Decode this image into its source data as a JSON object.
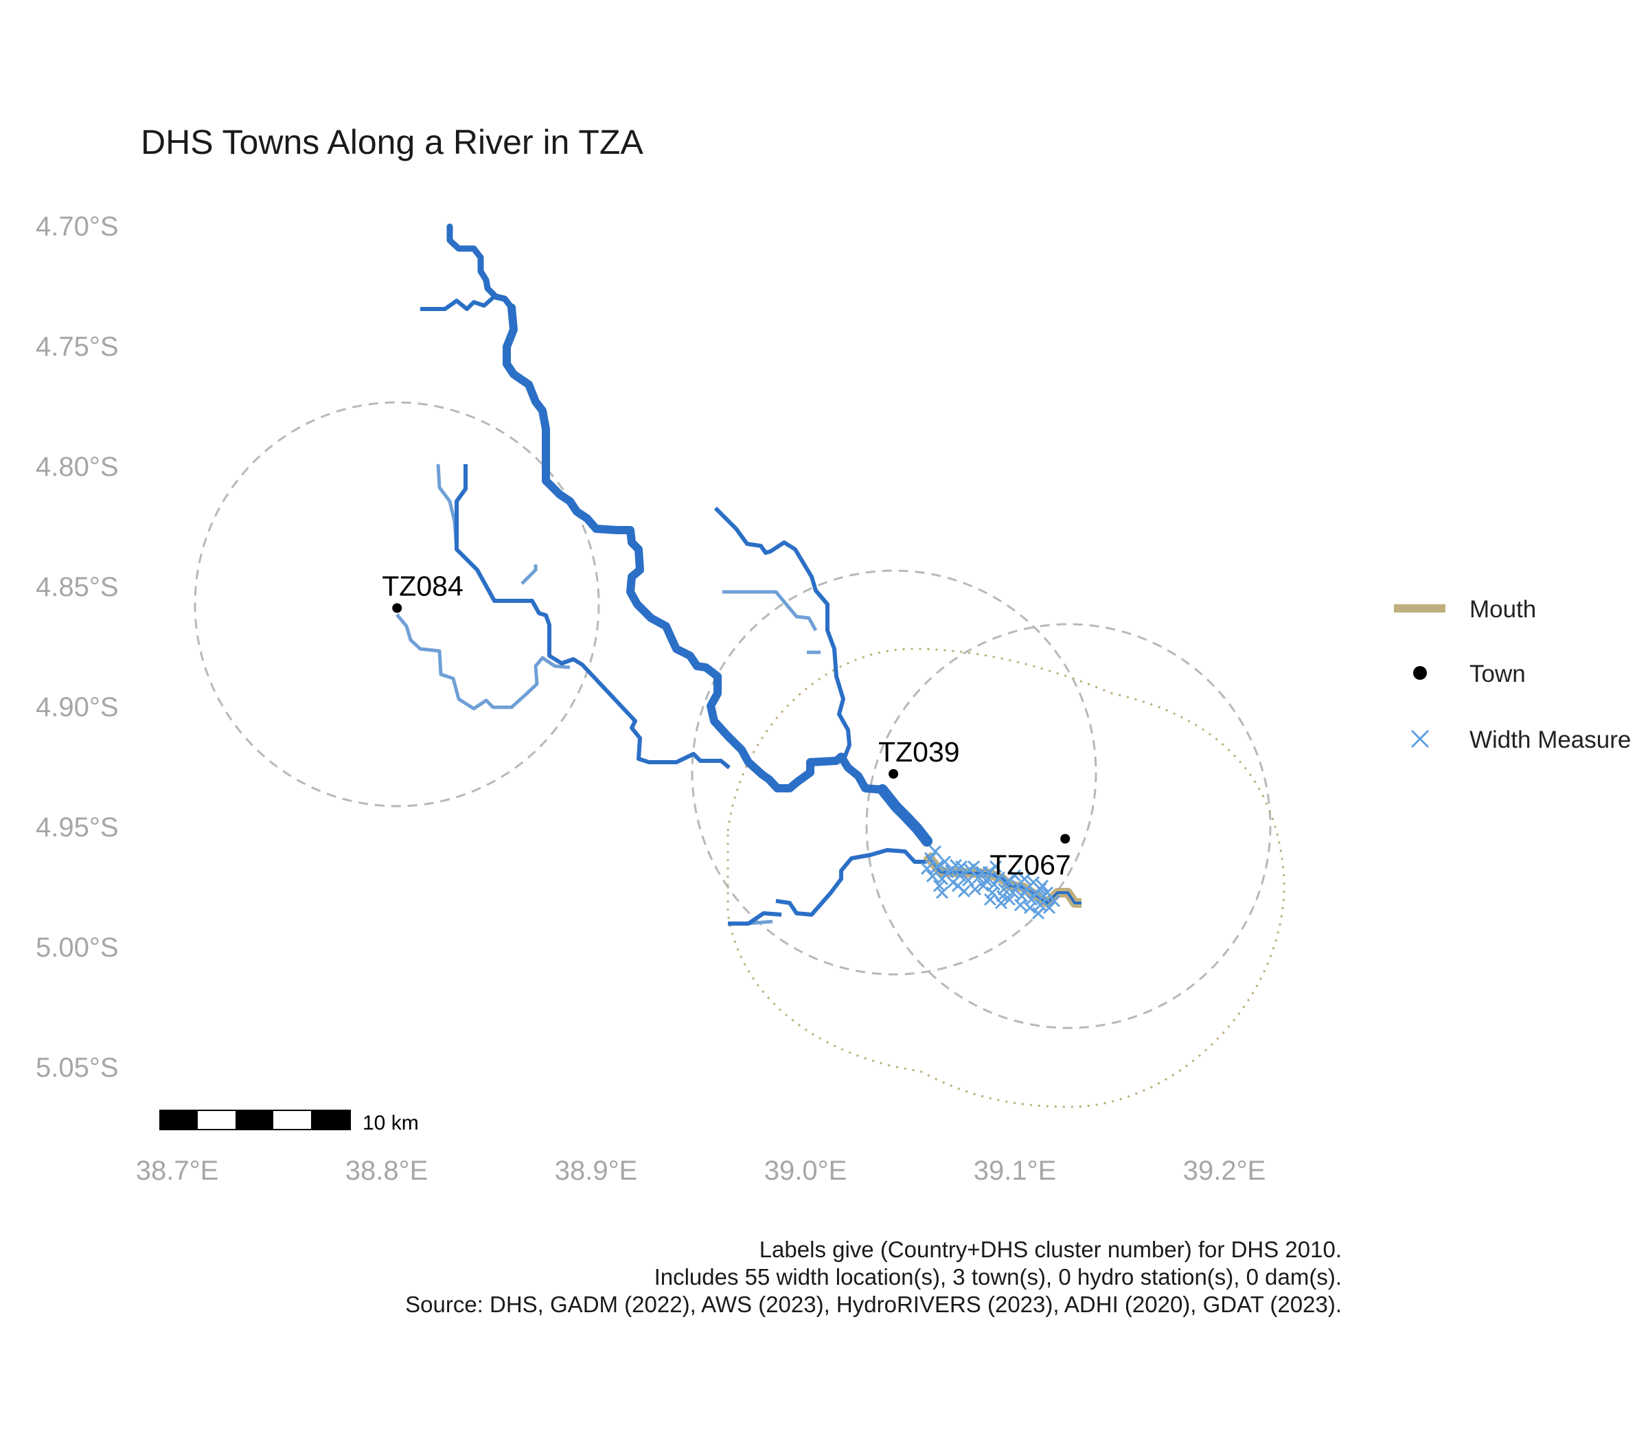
{
  "title": "DHS Towns Along a River in TZA",
  "axes": {
    "x_ticks": [
      "38.7°E",
      "38.8°E",
      "38.9°E",
      "39.0°E",
      "39.1°E",
      "39.2°E"
    ],
    "y_ticks": [
      "4.70°S",
      "4.75°S",
      "4.80°S",
      "4.85°S",
      "4.90°S",
      "4.95°S",
      "5.00°S",
      "5.05°S"
    ]
  },
  "towns": [
    {
      "label": "TZ084",
      "lon": 38.805,
      "lat": -4.859
    },
    {
      "label": "TZ039",
      "lon": 39.042,
      "lat": -4.928
    },
    {
      "label": "TZ067",
      "lon": 39.124,
      "lat": -4.955
    }
  ],
  "legend": {
    "items": [
      {
        "label": "Mouth",
        "color": "#bfae7e",
        "symbol": "line"
      },
      {
        "label": "Town",
        "color": "#000000",
        "symbol": "dot"
      },
      {
        "label": "Width Measure",
        "color": "#5fa0e0",
        "symbol": "cross"
      }
    ]
  },
  "scale_bar": {
    "label": "10 km"
  },
  "caption": {
    "line1": "Labels give (Country+DHS cluster number) for DHS 2010.",
    "line2": "Includes 55 width location(s), 3 town(s), 0 hydro station(s), 0 dam(s).",
    "line3": "Source: DHS, GADM (2022), AWS (2023), HydroRIVERS (2023), ADHI (2020), GDAT (2023)."
  },
  "colors": {
    "river_main": "#2b6fc6",
    "river_light": "#6f9fd6",
    "mouth": "#bfae7e",
    "buffer": "#b8b8b8",
    "width_measure": "#5fa0e0"
  }
}
